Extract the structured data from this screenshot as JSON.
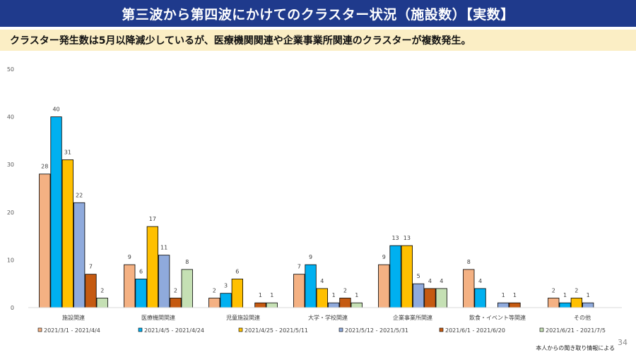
{
  "header": {
    "title": "第三波から第四波にかけてのクラスター状況（施設数）【実数】",
    "subtitle": "クラスター発生数は5月以降減少しているが、医療機関関連や企業事業所関連のクラスターが複数発生。"
  },
  "footer": {
    "source": "本人からの聞き取り情報による",
    "page_number": "34"
  },
  "chart_data": {
    "type": "bar",
    "title": "",
    "xlabel": "",
    "ylabel": "",
    "ylim": [
      0,
      50
    ],
    "yticks": [
      0,
      10,
      20,
      30,
      40,
      50
    ],
    "grid": false,
    "legend_position": "bottom",
    "categories": [
      "施設関連",
      "医療機関関連",
      "児童施設関連",
      "大学・学校関連",
      "企業事業所関連",
      "飲食・イベント等関連",
      "その他"
    ],
    "series": [
      {
        "name": "2021/3/1 - 2021/4/4",
        "color": "#f4b183",
        "values": [
          28,
          9,
          2,
          7,
          9,
          8,
          2
        ]
      },
      {
        "name": "2021/4/5 - 2021/4/24",
        "color": "#00b0f0",
        "values": [
          40,
          6,
          3,
          9,
          13,
          4,
          1
        ]
      },
      {
        "name": "2021/4/25 - 2021/5/11",
        "color": "#ffc000",
        "values": [
          31,
          17,
          6,
          4,
          13,
          null,
          2
        ]
      },
      {
        "name": "2021/5/12 - 2021/5/31",
        "color": "#8faadc",
        "values": [
          22,
          11,
          null,
          1,
          5,
          1,
          1
        ]
      },
      {
        "name": "2021/6/1 - 2021/6/20",
        "color": "#c55a11",
        "values": [
          7,
          2,
          1,
          2,
          4,
          1,
          null
        ]
      },
      {
        "name": "2021/6/21 - 2021/7/5",
        "color": "#c5e0b4",
        "values": [
          2,
          8,
          1,
          1,
          4,
          null,
          null
        ]
      }
    ]
  }
}
